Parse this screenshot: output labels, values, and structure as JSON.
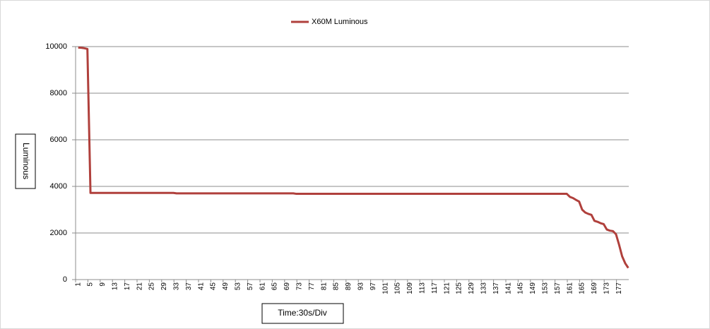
{
  "chart_data": {
    "type": "line",
    "y_axis_label": "Luminous",
    "x_axis_label": "Time:30s/Div",
    "ylim": [
      0,
      10000
    ],
    "yticks": [
      0,
      2000,
      4000,
      6000,
      8000,
      10000
    ],
    "grid": true,
    "legend": "top",
    "categories": [
      1,
      null,
      null,
      null,
      5,
      null,
      null,
      null,
      9,
      null,
      null,
      null,
      13,
      null,
      null,
      null,
      17,
      null,
      null,
      null,
      21,
      null,
      null,
      null,
      25,
      null,
      null,
      null,
      29,
      null,
      null,
      null,
      33,
      null,
      null,
      null,
      37,
      null,
      null,
      null,
      41,
      null,
      null,
      null,
      45,
      null,
      null,
      null,
      49,
      null,
      null,
      null,
      53,
      null,
      null,
      null,
      57,
      null,
      null,
      null,
      61,
      null,
      null,
      null,
      65,
      null,
      null,
      null,
      69,
      null,
      null,
      null,
      73,
      null,
      null,
      null,
      77,
      null,
      null,
      null,
      81,
      null,
      null,
      null,
      85,
      null,
      null,
      null,
      89,
      null,
      null,
      null,
      93,
      null,
      null,
      null,
      97,
      null,
      null,
      null,
      101,
      null,
      null,
      null,
      105,
      null,
      null,
      null,
      109,
      null,
      null,
      null,
      113,
      null,
      null,
      null,
      117,
      null,
      null,
      null,
      121,
      null,
      null,
      null,
      125,
      null,
      null,
      null,
      129,
      null,
      null,
      null,
      133,
      null,
      null,
      null,
      137,
      null,
      null,
      null,
      141,
      null,
      null,
      null,
      145,
      null,
      null,
      null,
      149,
      null,
      null,
      null,
      153,
      null,
      null,
      null,
      157,
      null,
      null,
      null,
      161,
      null,
      null,
      null,
      165,
      null,
      null,
      null,
      169,
      null,
      null,
      null,
      173,
      null,
      null,
      null,
      177,
      null,
      null,
      null
    ],
    "series": [
      {
        "name": "X60M Luminous",
        "color": "#b0403c",
        "values": [
          9960,
          9950,
          9930,
          9900,
          3720,
          3720,
          3720,
          3720,
          3720,
          3720,
          3720,
          3720,
          3720,
          3720,
          3720,
          3720,
          3720,
          3720,
          3720,
          3720,
          3720,
          3720,
          3720,
          3720,
          3720,
          3720,
          3720,
          3720,
          3720,
          3720,
          3720,
          3720,
          3700,
          3700,
          3700,
          3700,
          3700,
          3700,
          3700,
          3700,
          3700,
          3700,
          3700,
          3700,
          3700,
          3700,
          3700,
          3700,
          3700,
          3700,
          3700,
          3700,
          3700,
          3700,
          3700,
          3700,
          3700,
          3700,
          3700,
          3700,
          3700,
          3700,
          3700,
          3700,
          3700,
          3700,
          3700,
          3700,
          3700,
          3700,
          3700,
          3680,
          3680,
          3680,
          3680,
          3680,
          3680,
          3680,
          3680,
          3680,
          3680,
          3680,
          3680,
          3680,
          3680,
          3680,
          3680,
          3680,
          3680,
          3680,
          3680,
          3680,
          3680,
          3680,
          3680,
          3680,
          3680,
          3680,
          3680,
          3680,
          3680,
          3680,
          3680,
          3680,
          3680,
          3680,
          3680,
          3680,
          3680,
          3680,
          3680,
          3680,
          3680,
          3680,
          3680,
          3680,
          3680,
          3680,
          3680,
          3680,
          3680,
          3680,
          3680,
          3680,
          3680,
          3680,
          3680,
          3680,
          3680,
          3680,
          3680,
          3680,
          3680,
          3680,
          3680,
          3680,
          3680,
          3680,
          3680,
          3680,
          3680,
          3680,
          3680,
          3680,
          3680,
          3680,
          3680,
          3680,
          3680,
          3680,
          3680,
          3680,
          3680,
          3680,
          3680,
          3680,
          3680,
          3680,
          3680,
          3680,
          3550,
          3500,
          3420,
          3350,
          3000,
          2880,
          2820,
          2780,
          2520,
          2480,
          2420,
          2380,
          2150,
          2100,
          2080,
          1950,
          1500,
          1000,
          700,
          500
        ]
      }
    ]
  }
}
